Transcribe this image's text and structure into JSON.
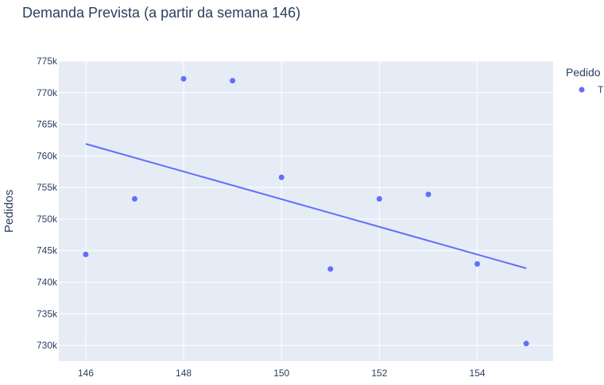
{
  "chart_data": {
    "type": "scatter",
    "title": "Demanda Prevista (a partir da semana 146)",
    "xlabel": "",
    "ylabel": "Pedidos",
    "xlim": [
      145.45,
      155.55
    ],
    "ylim": [
      727500,
      775000
    ],
    "x_ticks": [
      146,
      148,
      150,
      152,
      154
    ],
    "x_tick_labels": [
      "146",
      "148",
      "150",
      "152",
      "154"
    ],
    "y_ticks": [
      730000,
      735000,
      740000,
      745000,
      750000,
      755000,
      760000,
      765000,
      770000,
      775000
    ],
    "y_tick_labels": [
      "730k",
      "735k",
      "740k",
      "745k",
      "750k",
      "755k",
      "760k",
      "765k",
      "770k",
      "775k"
    ],
    "grid": true,
    "legend": {
      "title": "Pedido",
      "placement": "right",
      "entries": [
        "T"
      ]
    },
    "series": [
      {
        "type": "scatter",
        "color": "#636efa",
        "x": [
          146,
          147,
          148,
          149,
          150,
          151,
          152,
          153,
          154,
          155
        ],
        "y": [
          744400,
          753200,
          772200,
          771900,
          756600,
          742100,
          753200,
          753900,
          742900,
          730300
        ]
      },
      {
        "type": "line",
        "color": "#636efa",
        "x": [
          146,
          155
        ],
        "y": [
          761900,
          742200
        ]
      }
    ]
  }
}
